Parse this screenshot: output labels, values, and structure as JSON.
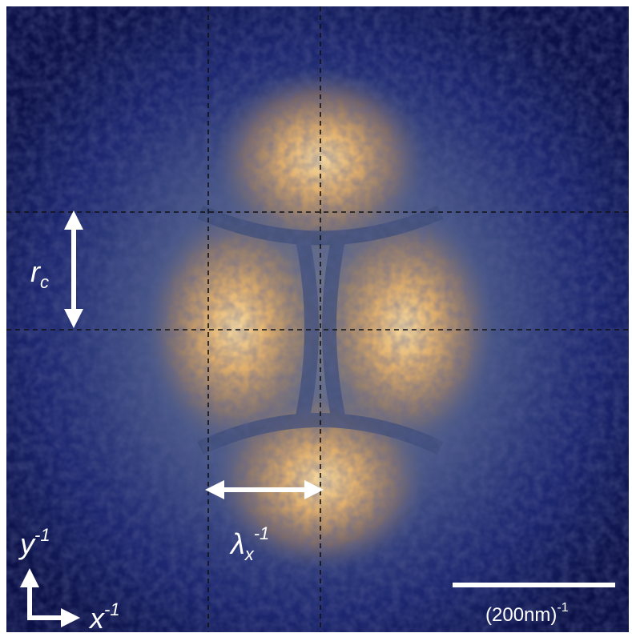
{
  "labels": {
    "r_c": {
      "base": "r",
      "sub": "c"
    },
    "lambda_x": {
      "base": "λ",
      "sub": "x",
      "sup": "-1"
    },
    "y_axis": {
      "base": "y",
      "sup": "-1"
    },
    "x_axis": {
      "base": "x",
      "sup": "-1"
    },
    "scale_bar": {
      "base": "(200nm)",
      "sup": "-1"
    }
  }
}
